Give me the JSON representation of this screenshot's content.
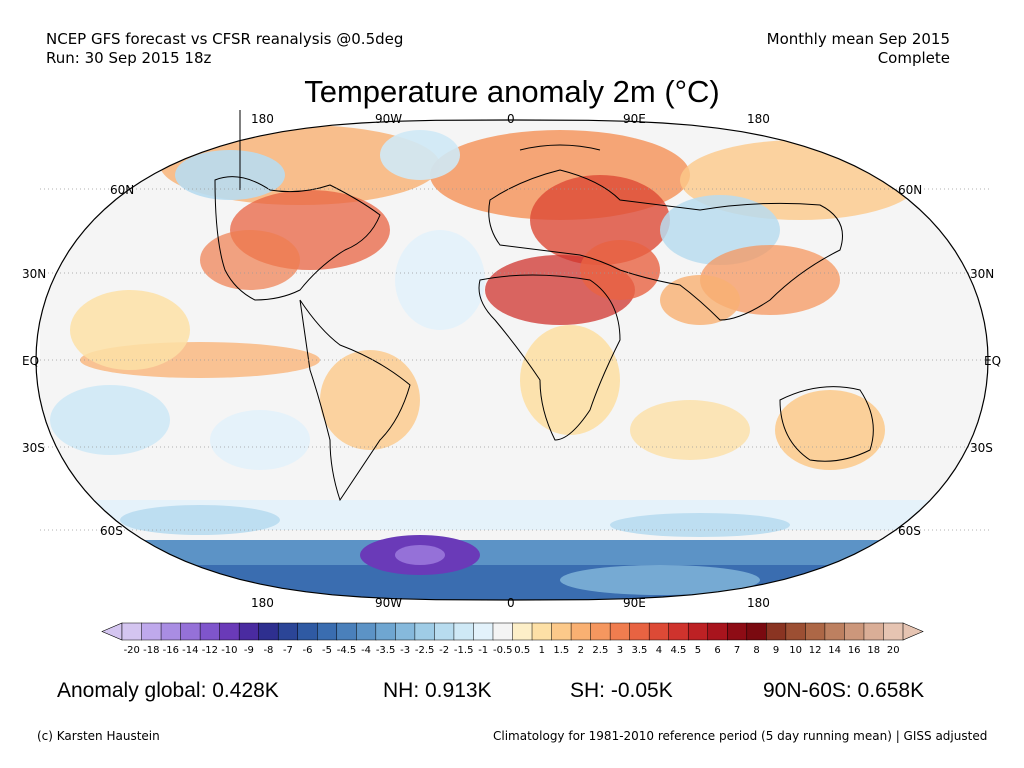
{
  "header": {
    "line1": "NCEP GFS forecast vs CFSR reanalysis @0.5deg",
    "line2": "Run: 30 Sep 2015 18z",
    "right1": "Monthly mean Sep 2015",
    "right2": "Complete"
  },
  "title": "Temperature anomaly 2m (°C)",
  "longitude_labels": [
    "180",
    "90W",
    "0",
    "90E",
    "180"
  ],
  "latitude_labels": [
    "60N",
    "30N",
    "EQ",
    "30S",
    "60S"
  ],
  "colorbar": {
    "ticks": [
      "-20",
      "-18",
      "-16",
      "-14",
      "-12",
      "-10",
      "-9",
      "-8",
      "-7",
      "-6",
      "-5",
      "-4.5",
      "-4",
      "-3.5",
      "-3",
      "-2.5",
      "-2",
      "-1.5",
      "-1",
      "-0.5",
      "0.5",
      "1",
      "1.5",
      "2",
      "2.5",
      "3",
      "3.5",
      "4",
      "4.5",
      "5",
      "6",
      "7",
      "8",
      "9",
      "10",
      "12",
      "14",
      "16",
      "18",
      "20"
    ],
    "colors": [
      "#d4c5f0",
      "#bfa9ec",
      "#a98de3",
      "#9571d8",
      "#7f55cc",
      "#6a3ab8",
      "#4a2ba0",
      "#2e2f8f",
      "#2b4597",
      "#2f5aa3",
      "#3a6db0",
      "#4a80bb",
      "#5c93c6",
      "#6fa6d1",
      "#86b9dc",
      "#9fcce6",
      "#b8dcef",
      "#cfe9f6",
      "#e3f2fb",
      "#f4f4f4",
      "#fdefc8",
      "#fde0a6",
      "#fcc98a",
      "#f9b072",
      "#f5975f",
      "#f07d4f",
      "#e86342",
      "#dd4a36",
      "#cf332d",
      "#bd2124",
      "#a8141d",
      "#8e0c15",
      "#7a0a10",
      "#8a3422",
      "#9c4f33",
      "#ad6746",
      "#bd8060",
      "#cc977b",
      "#daae97",
      "#e6c4b2"
    ]
  },
  "stats": {
    "global": "Anomaly global: 0.428K",
    "nh": "NH: 0.913K",
    "sh": "SH: -0.05K",
    "arctic": "90N-60S: 0.658K"
  },
  "footer": {
    "left": "(c) Karsten Haustein",
    "right": "Climatology for 1981-2010 reference period (5 day running mean) | GISS adjusted"
  }
}
